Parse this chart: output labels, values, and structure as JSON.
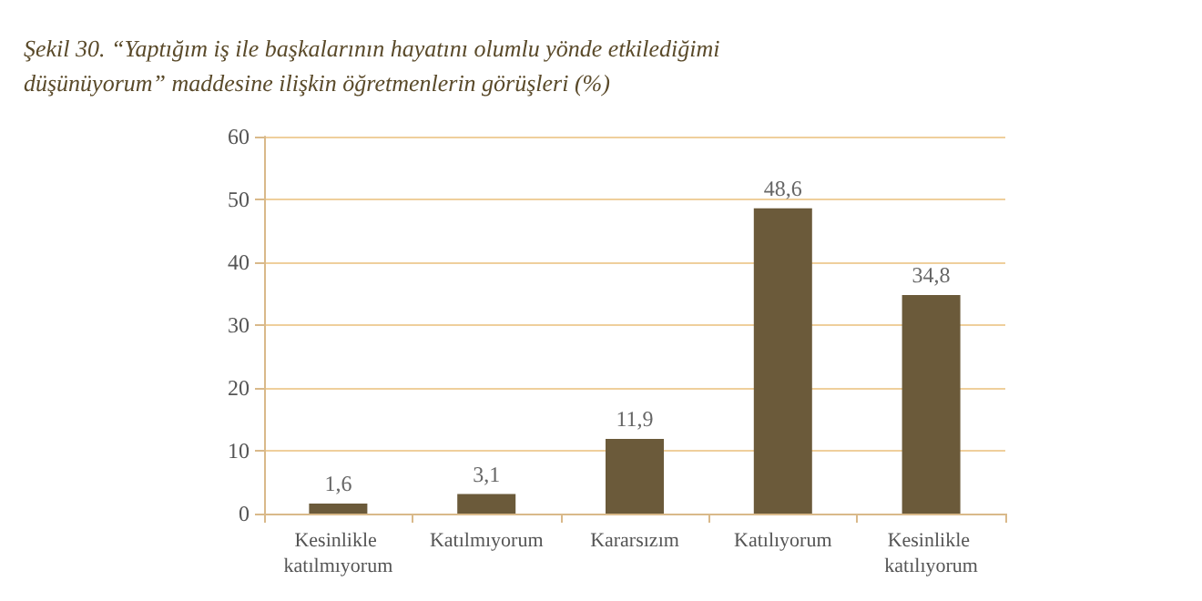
{
  "chart_data": {
    "type": "bar",
    "title": "Şekil 30. “Yaptığım iş ile başkalarının hayatını olumlu yönde etkilediğimi düşünüyorum” maddesine ilişkin öğretmenlerin görüşleri (%)",
    "categories": [
      "Kesinlikle katılmıyorum",
      "Katılmıyorum",
      "Kararsızım",
      "Katılıyorum",
      "Kesinlikle katılıyorum"
    ],
    "values": [
      1.6,
      3.1,
      11.9,
      48.6,
      34.8
    ],
    "value_labels": [
      "1,6",
      "3,1",
      "11,9",
      "48,6",
      "34,8"
    ],
    "color": "#6b5a3a",
    "ylim": [
      0,
      60
    ],
    "yticks": [
      0,
      10,
      20,
      30,
      40,
      50,
      60
    ],
    "grid": "y"
  }
}
